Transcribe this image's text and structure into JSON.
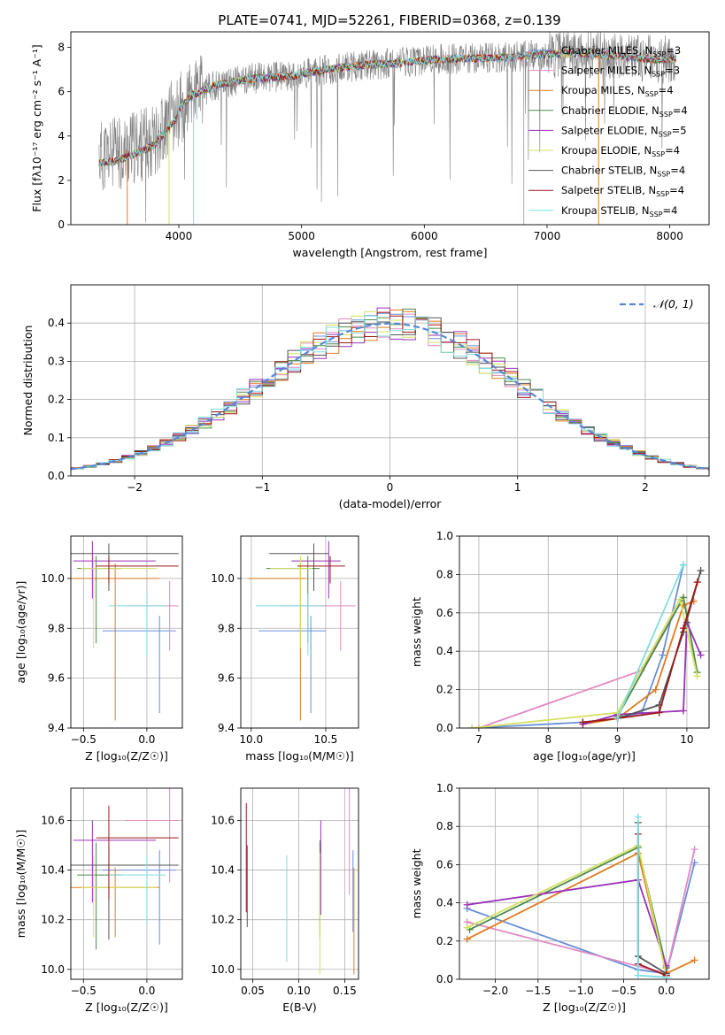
{
  "title": "PLATE=0741, MJD=52261, FIBERID=0368, z=0.139",
  "colors": {
    "Chabrier MILES": "#6a8fd9",
    "Salpeter MILES": "#e18ac3",
    "Kroupa MILES": "#e07b1f",
    "Chabrier ELODIE": "#4a8a4a",
    "Salpeter ELODIE": "#9a32b8",
    "Kroupa ELODIE": "#d4e060",
    "Chabrier STELIB": "#555555",
    "Salpeter STELIB": "#a01818",
    "Kroupa STELIB": "#80dde0"
  },
  "chart_data": [
    {
      "id": "spectrum",
      "type": "line",
      "xlabel": "wavelength [Angstrom, rest frame]",
      "ylabel": "Flux [fλ10⁻¹⁷ erg cm⁻² s⁻¹ A⁻¹]",
      "xlim": [
        3120,
        8320
      ],
      "ylim": [
        0,
        8.7
      ],
      "xticks": [
        4000,
        5000,
        6000,
        7000,
        8000
      ],
      "yticks": [
        0,
        2,
        4,
        6,
        8
      ],
      "legend": "top-right",
      "legend_entries": [
        {
          "model": "Chabrier MILES",
          "nssp": "3"
        },
        {
          "model": "Salpeter MILES",
          "nssp": "3"
        },
        {
          "model": "Kroupa MILES",
          "nssp": "4"
        },
        {
          "model": "Chabrier ELODIE",
          "nssp": "4"
        },
        {
          "model": "Salpeter ELODIE",
          "nssp": "5"
        },
        {
          "model": "Kroupa ELODIE",
          "nssp": "4"
        },
        {
          "model": "Chabrier STELIB",
          "nssp": "4"
        },
        {
          "model": "Salpeter STELIB",
          "nssp": "4"
        },
        {
          "model": "Kroupa STELIB",
          "nssp": "4"
        }
      ],
      "continuum": {
        "x": [
          3350,
          3500,
          3650,
          3800,
          3950,
          4100,
          4300,
          4600,
          4900,
          5200,
          5500,
          5800,
          6100,
          6400,
          6700,
          7000,
          7300,
          7600,
          7900,
          8050
        ],
        "y": [
          3.1,
          3.2,
          3.5,
          3.9,
          4.9,
          5.8,
          6.3,
          6.6,
          6.7,
          7.0,
          7.2,
          7.3,
          7.45,
          7.5,
          7.55,
          7.7,
          7.75,
          7.6,
          7.45,
          7.5
        ]
      },
      "data_x_range": [
        3350,
        8050
      ]
    },
    {
      "id": "residuals",
      "type": "bar",
      "xlabel": "(data-model)/error",
      "ylabel": "Normed distribution",
      "xlim": [
        -2.5,
        2.5
      ],
      "ylim": [
        0,
        0.5
      ],
      "xticks": [
        -2,
        -1,
        0,
        1,
        2
      ],
      "yticks": [
        0.0,
        0.1,
        0.2,
        0.3,
        0.4
      ],
      "legend": "top-right",
      "legend_label": "𝒩(0, 1)",
      "bins": {
        "start": -2.5,
        "width": 0.1,
        "count": 50
      }
    },
    {
      "id": "age-vs-Z",
      "type": "scatter",
      "xlabel": "Z [log₁₀(Z/Z☉)]",
      "ylabel": "age  [log₁₀(age/yr)]",
      "xlim": [
        -0.6,
        0.28
      ],
      "ylim": [
        9.4,
        10.17
      ],
      "xticks": [
        -0.5,
        0.0
      ],
      "yticks": [
        9.4,
        9.6,
        9.8,
        10.0
      ]
    },
    {
      "id": "age-vs-mass",
      "type": "scatter",
      "xlabel": "mass [log₁₀(M/M☉)]",
      "ylabel": "",
      "xlim": [
        9.93,
        10.72
      ],
      "ylim": [
        9.4,
        10.17
      ],
      "xticks": [
        10.0,
        10.5
      ],
      "yticks": [
        9.4,
        9.6,
        9.8,
        10.0
      ]
    },
    {
      "id": "weight-vs-age",
      "type": "line",
      "xlabel": "age  [log₁₀(age/yr)]",
      "ylabel": "mass weight",
      "xlim": [
        6.72,
        10.32
      ],
      "ylim": [
        0,
        1
      ],
      "xticks": [
        7,
        8,
        9,
        10
      ],
      "yticks": [
        0.0,
        0.2,
        0.4,
        0.6,
        0.8,
        1.0
      ]
    },
    {
      "id": "mass-vs-Z",
      "type": "scatter",
      "xlabel": "Z [log₁₀(Z/Z☉)]",
      "ylabel": "mass [log₁₀(M/M☉)]",
      "xlim": [
        -0.6,
        0.28
      ],
      "ylim": [
        9.96,
        10.73
      ],
      "xticks": [
        -0.5,
        0.0
      ],
      "yticks": [
        10.0,
        10.2,
        10.4,
        10.6
      ]
    },
    {
      "id": "mass-vs-ebv",
      "type": "scatter",
      "xlabel": "E(B-V)",
      "ylabel": "",
      "xlim": [
        0.037,
        0.165
      ],
      "ylim": [
        9.96,
        10.73
      ],
      "xticks": [
        0.05,
        0.1,
        0.15
      ],
      "yticks": [
        10.0,
        10.2,
        10.4,
        10.6
      ]
    },
    {
      "id": "weight-vs-Z",
      "type": "line",
      "xlabel": "Z [log₁₀(Z/Z☉)]",
      "ylabel": "mass weight",
      "xlim": [
        -2.42,
        0.5
      ],
      "ylim": [
        0,
        1
      ],
      "xticks": [
        -2.0,
        -1.5,
        -1.0,
        -0.5,
        0.0
      ],
      "yticks": [
        0.0,
        0.2,
        0.4,
        0.6,
        0.8,
        1.0
      ]
    }
  ],
  "models": [
    {
      "name": "Chabrier MILES",
      "age": 9.79,
      "Z": 0.1,
      "mass": 10.4,
      "ebv": 0.159,
      "ageW": [
        [
          6.9,
          0.0
        ],
        [
          8.5,
          0.03
        ],
        [
          9.0,
          0.05
        ],
        [
          9.35,
          0.08
        ],
        [
          9.65,
          0.38
        ],
        [
          9.95,
          0.85
        ]
      ],
      "zW": [
        [
          -2.33,
          0.37
        ],
        [
          -0.33,
          0.05
        ],
        [
          0.0,
          0.03
        ],
        [
          0.33,
          0.61
        ]
      ]
    },
    {
      "name": "Salpeter MILES",
      "age": 9.89,
      "Z": 0.18,
      "mass": 10.6,
      "ebv": 0.155,
      "ageW": [
        [
          7.0,
          0.0
        ],
        [
          9.35,
          0.3
        ],
        [
          9.95,
          0.68
        ]
      ],
      "zW": [
        [
          -2.33,
          0.3
        ],
        [
          0.0,
          0.03
        ],
        [
          0.33,
          0.68
        ]
      ]
    },
    {
      "name": "Kroupa MILES",
      "age": 10.0,
      "Z": -0.25,
      "mass": 10.33,
      "ebv": 0.16,
      "ageW": [
        [
          8.5,
          0.02
        ],
        [
          9.0,
          0.05
        ],
        [
          9.55,
          0.2
        ],
        [
          9.95,
          0.64
        ],
        [
          10.1,
          0.66
        ]
      ],
      "zW": [
        [
          -2.33,
          0.21
        ],
        [
          -0.33,
          0.66
        ],
        [
          0.0,
          0.03
        ],
        [
          0.33,
          0.1
        ]
      ]
    },
    {
      "name": "Chabrier ELODIE",
      "age": 10.04,
      "Z": -0.4,
      "mass": 10.38,
      "ebv": 0.123,
      "ageW": [
        [
          9.0,
          0.06
        ],
        [
          9.95,
          0.68
        ],
        [
          10.15,
          0.29
        ]
      ],
      "zW": [
        [
          -2.3,
          0.26
        ],
        [
          -0.33,
          0.69
        ],
        [
          0.0,
          0.06
        ]
      ]
    },
    {
      "name": "Salpeter ELODIE",
      "age": 10.07,
      "Z": -0.43,
      "mass": 10.52,
      "ebv": 0.124,
      "ageW": [
        [
          8.5,
          0.02
        ],
        [
          9.0,
          0.07
        ],
        [
          9.95,
          0.09
        ],
        [
          10.0,
          0.55
        ],
        [
          10.2,
          0.38
        ]
      ],
      "zW": [
        [
          -2.33,
          0.39
        ],
        [
          -0.33,
          0.52
        ],
        [
          0.0,
          0.07
        ]
      ]
    },
    {
      "name": "Kroupa ELODIE",
      "age": 10.04,
      "Z": -0.42,
      "mass": 10.33,
      "ebv": 0.123,
      "ageW": [
        [
          6.9,
          0.0
        ],
        [
          9.0,
          0.08
        ],
        [
          9.9,
          0.67
        ],
        [
          10.15,
          0.27
        ]
      ],
      "zW": [
        [
          -2.33,
          0.27
        ],
        [
          -0.33,
          0.7
        ],
        [
          0.0,
          0.02
        ]
      ]
    },
    {
      "name": "Chabrier STELIB",
      "age": 10.1,
      "Z": -0.3,
      "mass": 10.42,
      "ebv": 0.044,
      "ageW": [
        [
          8.5,
          0.03
        ],
        [
          9.0,
          0.05
        ],
        [
          9.6,
          0.12
        ],
        [
          9.95,
          0.5
        ],
        [
          10.2,
          0.82
        ]
      ],
      "zW": [
        [
          -0.33,
          0.82
        ],
        [
          -0.33,
          0.12
        ],
        [
          0.0,
          0.03
        ]
      ]
    },
    {
      "name": "Salpeter STELIB",
      "age": 10.05,
      "Z": -0.3,
      "mass": 10.53,
      "ebv": 0.043,
      "ageW": [
        [
          8.5,
          0.03
        ],
        [
          9.0,
          0.05
        ],
        [
          9.6,
          0.08
        ],
        [
          9.95,
          0.52
        ],
        [
          10.15,
          0.76
        ]
      ],
      "zW": [
        [
          -0.33,
          0.76
        ],
        [
          -0.33,
          0.08
        ],
        [
          0.0,
          0.02
        ]
      ]
    },
    {
      "name": "Kroupa STELIB",
      "age": 9.89,
      "Z": 0.0,
      "mass": 10.38,
      "ebv": 0.087,
      "ageW": [
        [
          9.0,
          0.05
        ],
        [
          9.95,
          0.85
        ]
      ],
      "zW": [
        [
          -0.33,
          0.85
        ],
        [
          -0.33,
          0.02
        ],
        [
          0.0,
          0.01
        ]
      ]
    }
  ]
}
